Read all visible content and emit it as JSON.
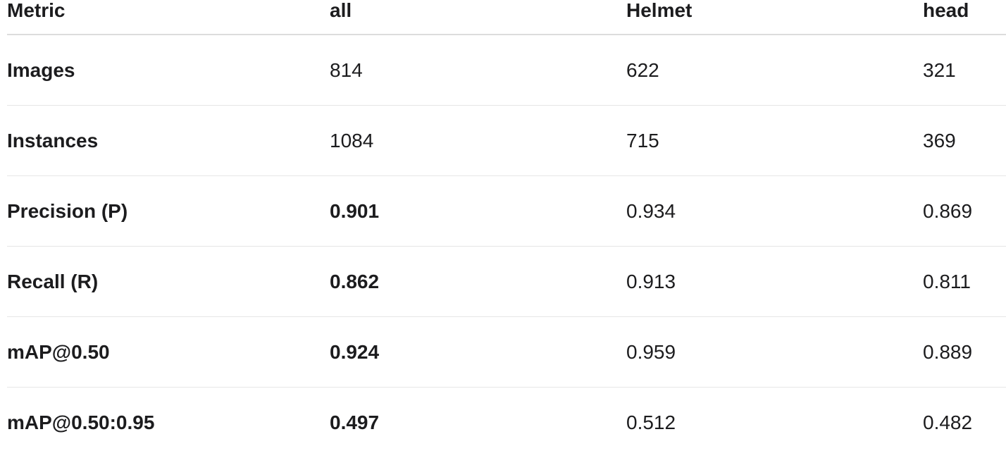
{
  "table": {
    "headers": [
      "Metric",
      "all",
      "Helmet",
      "head"
    ],
    "rows": [
      {
        "metric": "Images",
        "all": "814",
        "helmet": "622",
        "head": "321"
      },
      {
        "metric": "Instances",
        "all": "1084",
        "helmet": "715",
        "head": "369"
      },
      {
        "metric": "Precision (P)",
        "all": "0.901",
        "helmet": "0.934",
        "head": "0.869"
      },
      {
        "metric": "Recall (R)",
        "all": "0.862",
        "helmet": "0.913",
        "head": "0.811"
      },
      {
        "metric": "mAP@0.50",
        "all": "0.924",
        "helmet": "0.959",
        "head": "0.889"
      },
      {
        "metric": "mAP@0.50:0.95",
        "all": "0.497",
        "helmet": "0.512",
        "head": "0.482"
      }
    ]
  }
}
